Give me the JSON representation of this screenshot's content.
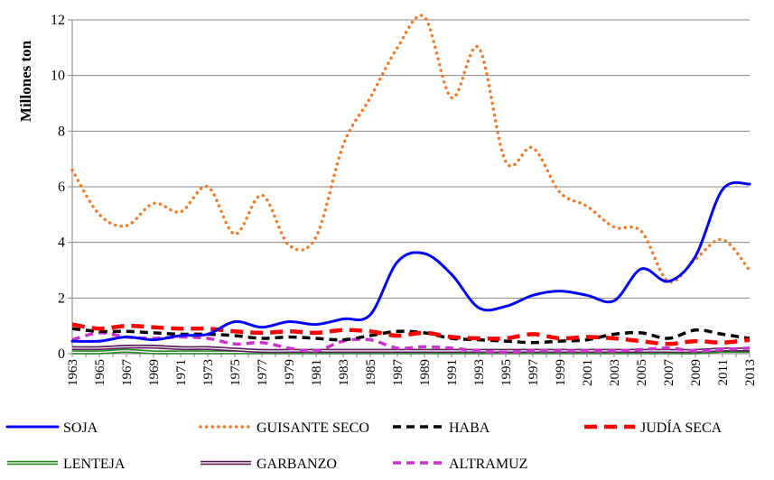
{
  "chart_data": {
    "type": "line",
    "title": "",
    "ylabel": "Millones ton",
    "xlabel": "",
    "ylim": [
      0,
      12
    ],
    "yticks": [
      0,
      2,
      4,
      6,
      8,
      10,
      12
    ],
    "xlim": [
      1963,
      2013
    ],
    "xticks": [
      1963,
      1965,
      1967,
      1969,
      1971,
      1973,
      1975,
      1977,
      1979,
      1981,
      1983,
      1985,
      1987,
      1989,
      1991,
      1993,
      1995,
      1997,
      1999,
      2001,
      2003,
      2005,
      2007,
      2009,
      2011,
      2013
    ],
    "grid": "horizontal",
    "legend_position": "bottom",
    "x": [
      1963,
      1965,
      1967,
      1969,
      1971,
      1973,
      1975,
      1977,
      1979,
      1981,
      1983,
      1985,
      1987,
      1989,
      1991,
      1993,
      1995,
      1997,
      1999,
      2001,
      2003,
      2005,
      2007,
      2009,
      2011,
      2013
    ],
    "series": [
      {
        "name": "SOJA",
        "color": "#0000ff",
        "dash": "solid",
        "style": "single",
        "values": [
          0.45,
          0.45,
          0.6,
          0.5,
          0.65,
          0.7,
          1.15,
          0.95,
          1.15,
          1.05,
          1.25,
          1.4,
          3.3,
          3.6,
          2.85,
          1.65,
          1.7,
          2.1,
          2.25,
          2.1,
          1.9,
          3.05,
          2.6,
          3.5,
          5.9,
          6.1
        ]
      },
      {
        "name": "GUISANTE SECO",
        "color": "#f07a28",
        "dash": "dotted",
        "style": "single",
        "values": [
          6.6,
          5.0,
          4.6,
          5.4,
          5.1,
          6.0,
          4.3,
          5.7,
          3.9,
          4.2,
          7.5,
          9.2,
          11.0,
          12.1,
          9.2,
          11.0,
          6.9,
          7.4,
          5.8,
          5.3,
          4.55,
          4.4,
          2.6,
          3.4,
          4.1,
          3.0
        ]
      },
      {
        "name": "HABA",
        "color": "#000000",
        "dash": "dashed",
        "style": "single",
        "values": [
          0.9,
          0.8,
          0.8,
          0.75,
          0.7,
          0.7,
          0.65,
          0.55,
          0.6,
          0.55,
          0.5,
          0.65,
          0.8,
          0.75,
          0.55,
          0.5,
          0.45,
          0.4,
          0.45,
          0.5,
          0.7,
          0.75,
          0.55,
          0.85,
          0.7,
          0.55
        ]
      },
      {
        "name": "JUDÍA SECA",
        "color": "#ff0000",
        "dash": "longdash",
        "style": "single",
        "values": [
          1.05,
          0.9,
          1.0,
          0.95,
          0.9,
          0.9,
          0.8,
          0.75,
          0.8,
          0.75,
          0.85,
          0.8,
          0.65,
          0.75,
          0.6,
          0.55,
          0.55,
          0.7,
          0.55,
          0.6,
          0.55,
          0.45,
          0.35,
          0.45,
          0.4,
          0.5
        ]
      },
      {
        "name": "LENTEJA",
        "color": "#2a8a2a",
        "dash": "solid",
        "style": "double",
        "values": [
          0.05,
          0.05,
          0.1,
          0.05,
          0.05,
          0.05,
          0.05,
          0.05,
          0.05,
          0.05,
          0.05,
          0.05,
          0.05,
          0.05,
          0.05,
          0.05,
          0.05,
          0.05,
          0.05,
          0.05,
          0.05,
          0.05,
          0.05,
          0.05,
          0.1,
          0.1
        ]
      },
      {
        "name": "GARBANZO",
        "color": "#5a1d5a",
        "dash": "solid",
        "style": "double",
        "values": [
          0.2,
          0.2,
          0.25,
          0.25,
          0.2,
          0.2,
          0.15,
          0.1,
          0.1,
          0.1,
          0.1,
          0.1,
          0.1,
          0.1,
          0.1,
          0.1,
          0.1,
          0.1,
          0.1,
          0.1,
          0.1,
          0.1,
          0.1,
          0.1,
          0.15,
          0.15
        ]
      },
      {
        "name": "ALTRAMUZ",
        "color": "#cc33cc",
        "dash": "dashed",
        "style": "single",
        "values": [
          0.5,
          0.75,
          0.6,
          0.55,
          0.6,
          0.55,
          0.35,
          0.4,
          0.2,
          0.1,
          0.45,
          0.5,
          0.2,
          0.25,
          0.2,
          0.1,
          0.05,
          0.1,
          0.1,
          0.1,
          0.1,
          0.15,
          0.2,
          0.1,
          0.15,
          0.2
        ]
      }
    ]
  }
}
